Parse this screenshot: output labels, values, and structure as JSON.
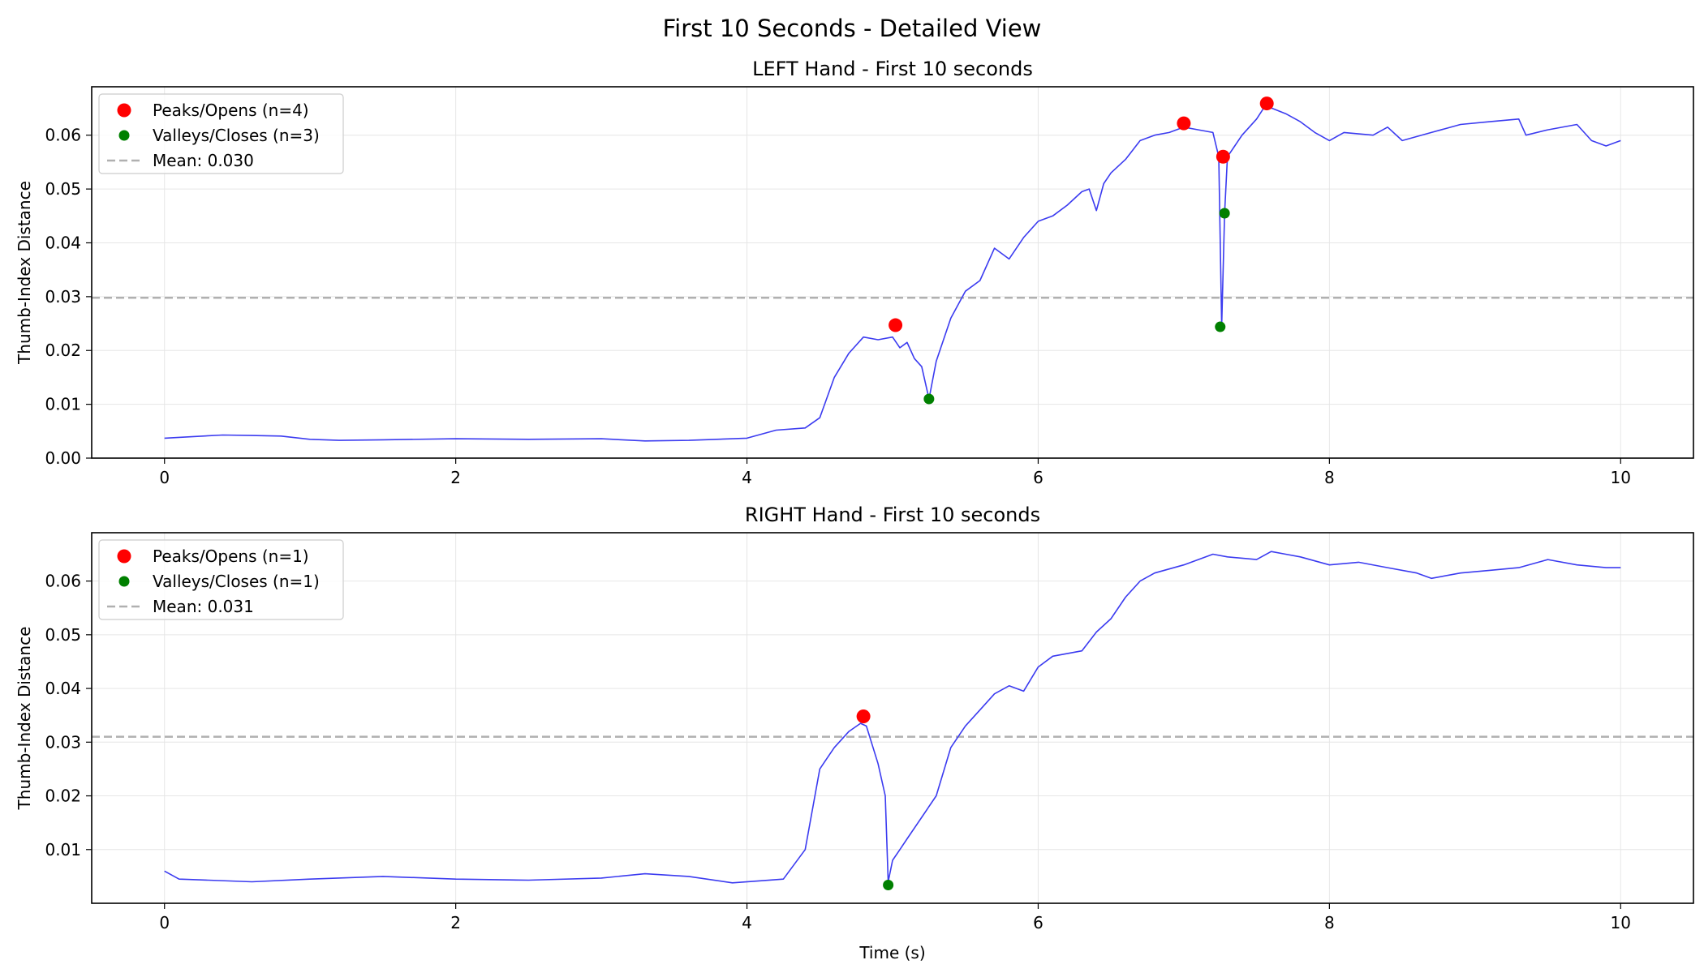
{
  "figure": {
    "title": "First 10 Seconds - Detailed View"
  },
  "chart_data": [
    {
      "type": "line",
      "title": "LEFT Hand - First 10 seconds",
      "xlabel": "",
      "ylabel": "Thumb-Index Distance",
      "xlim": [
        -0.5,
        10.5
      ],
      "ylim": [
        0.0,
        0.069
      ],
      "x_ticks": [
        0,
        2,
        4,
        6,
        8,
        10
      ],
      "y_ticks": [
        0.0,
        0.01,
        0.02,
        0.03,
        0.04,
        0.05,
        0.06
      ],
      "y_tick_decimals": 2,
      "grid": true,
      "legend_position": "top-left",
      "line_color": "#3b3bf0",
      "series": [
        {
          "kind": "line",
          "points": [
            [
              0.0,
              0.0037
            ],
            [
              0.2,
              0.004
            ],
            [
              0.4,
              0.0043
            ],
            [
              0.6,
              0.0042
            ],
            [
              0.8,
              0.0041
            ],
            [
              1.0,
              0.0035
            ],
            [
              1.2,
              0.0033
            ],
            [
              1.5,
              0.0034
            ],
            [
              2.0,
              0.0036
            ],
            [
              2.5,
              0.0035
            ],
            [
              3.0,
              0.0036
            ],
            [
              3.3,
              0.0032
            ],
            [
              3.6,
              0.0033
            ],
            [
              4.0,
              0.0037
            ],
            [
              4.2,
              0.0052
            ],
            [
              4.4,
              0.0056
            ],
            [
              4.5,
              0.0075
            ],
            [
              4.6,
              0.015
            ],
            [
              4.7,
              0.0195
            ],
            [
              4.8,
              0.0225
            ],
            [
              4.9,
              0.022
            ],
            [
              5.0,
              0.0225
            ],
            [
              5.05,
              0.0205
            ],
            [
              5.1,
              0.0215
            ],
            [
              5.15,
              0.0185
            ],
            [
              5.2,
              0.017
            ],
            [
              5.25,
              0.011
            ],
            [
              5.3,
              0.018
            ],
            [
              5.4,
              0.026
            ],
            [
              5.5,
              0.031
            ],
            [
              5.6,
              0.033
            ],
            [
              5.7,
              0.039
            ],
            [
              5.8,
              0.037
            ],
            [
              5.9,
              0.041
            ],
            [
              6.0,
              0.044
            ],
            [
              6.1,
              0.045
            ],
            [
              6.2,
              0.047
            ],
            [
              6.3,
              0.0495
            ],
            [
              6.35,
              0.05
            ],
            [
              6.4,
              0.046
            ],
            [
              6.45,
              0.051
            ],
            [
              6.5,
              0.053
            ],
            [
              6.6,
              0.0555
            ],
            [
              6.7,
              0.059
            ],
            [
              6.8,
              0.06
            ],
            [
              6.9,
              0.0605
            ],
            [
              7.0,
              0.0615
            ],
            [
              7.1,
              0.061
            ],
            [
              7.2,
              0.0605
            ],
            [
              7.24,
              0.056
            ],
            [
              7.26,
              0.0245
            ],
            [
              7.28,
              0.0455
            ],
            [
              7.3,
              0.056
            ],
            [
              7.35,
              0.058
            ],
            [
              7.4,
              0.06
            ],
            [
              7.5,
              0.063
            ],
            [
              7.56,
              0.0655
            ],
            [
              7.7,
              0.064
            ],
            [
              7.8,
              0.0625
            ],
            [
              7.9,
              0.0605
            ],
            [
              8.0,
              0.059
            ],
            [
              8.1,
              0.0605
            ],
            [
              8.3,
              0.06
            ],
            [
              8.4,
              0.0615
            ],
            [
              8.5,
              0.059
            ],
            [
              8.7,
              0.0605
            ],
            [
              8.9,
              0.062
            ],
            [
              9.1,
              0.0625
            ],
            [
              9.3,
              0.063
            ],
            [
              9.35,
              0.06
            ],
            [
              9.5,
              0.061
            ],
            [
              9.7,
              0.062
            ],
            [
              9.8,
              0.059
            ],
            [
              9.9,
              0.058
            ],
            [
              10.0,
              0.059
            ]
          ]
        },
        {
          "kind": "markers",
          "name": "Peaks/Opens (n=4)",
          "color": "#ff0000",
          "points": [
            [
              5.02,
              0.0247
            ],
            [
              7.0,
              0.0622
            ],
            [
              7.27,
              0.056
            ],
            [
              7.57,
              0.0659
            ]
          ]
        },
        {
          "kind": "markers",
          "name": "Valleys/Closes (n=3)",
          "color": "#008000",
          "points": [
            [
              5.25,
              0.011
            ],
            [
              7.25,
              0.0244
            ],
            [
              7.28,
              0.0455
            ]
          ]
        },
        {
          "kind": "hline",
          "name": "Mean: 0.030",
          "value": 0.0298,
          "color": "#b0b0b0"
        }
      ]
    },
    {
      "type": "line",
      "title": "RIGHT Hand - First 10 seconds",
      "xlabel": "Time (s)",
      "ylabel": "Thumb-Index Distance",
      "xlim": [
        -0.5,
        10.5
      ],
      "ylim": [
        0.0,
        0.069
      ],
      "x_ticks": [
        0,
        2,
        4,
        6,
        8,
        10
      ],
      "y_ticks": [
        0.01,
        0.02,
        0.03,
        0.04,
        0.05,
        0.06
      ],
      "y_tick_decimals": 2,
      "grid": true,
      "legend_position": "top-left",
      "line_color": "#3b3bf0",
      "series": [
        {
          "kind": "line",
          "points": [
            [
              0.0,
              0.006
            ],
            [
              0.1,
              0.0045
            ],
            [
              0.3,
              0.0043
            ],
            [
              0.6,
              0.004
            ],
            [
              1.0,
              0.0045
            ],
            [
              1.5,
              0.005
            ],
            [
              2.0,
              0.0045
            ],
            [
              2.5,
              0.0043
            ],
            [
              3.0,
              0.0047
            ],
            [
              3.3,
              0.0055
            ],
            [
              3.6,
              0.005
            ],
            [
              3.9,
              0.0038
            ],
            [
              4.1,
              0.0042
            ],
            [
              4.25,
              0.0045
            ],
            [
              4.4,
              0.01
            ],
            [
              4.5,
              0.025
            ],
            [
              4.6,
              0.029
            ],
            [
              4.7,
              0.032
            ],
            [
              4.78,
              0.0335
            ],
            [
              4.82,
              0.033
            ],
            [
              4.9,
              0.026
            ],
            [
              4.95,
              0.02
            ],
            [
              4.97,
              0.004
            ],
            [
              5.0,
              0.008
            ],
            [
              5.05,
              0.01
            ],
            [
              5.1,
              0.012
            ],
            [
              5.2,
              0.016
            ],
            [
              5.3,
              0.02
            ],
            [
              5.4,
              0.029
            ],
            [
              5.5,
              0.033
            ],
            [
              5.6,
              0.036
            ],
            [
              5.7,
              0.039
            ],
            [
              5.8,
              0.0405
            ],
            [
              5.9,
              0.0395
            ],
            [
              6.0,
              0.044
            ],
            [
              6.1,
              0.046
            ],
            [
              6.3,
              0.047
            ],
            [
              6.4,
              0.0505
            ],
            [
              6.5,
              0.053
            ],
            [
              6.6,
              0.057
            ],
            [
              6.7,
              0.06
            ],
            [
              6.8,
              0.0615
            ],
            [
              7.0,
              0.063
            ],
            [
              7.2,
              0.065
            ],
            [
              7.3,
              0.0645
            ],
            [
              7.5,
              0.064
            ],
            [
              7.6,
              0.0655
            ],
            [
              7.7,
              0.065
            ],
            [
              7.8,
              0.0645
            ],
            [
              8.0,
              0.063
            ],
            [
              8.2,
              0.0635
            ],
            [
              8.4,
              0.0625
            ],
            [
              8.6,
              0.0615
            ],
            [
              8.7,
              0.0605
            ],
            [
              8.9,
              0.0615
            ],
            [
              9.1,
              0.062
            ],
            [
              9.3,
              0.0625
            ],
            [
              9.5,
              0.064
            ],
            [
              9.7,
              0.063
            ],
            [
              9.9,
              0.0625
            ],
            [
              10.0,
              0.0625
            ]
          ]
        },
        {
          "kind": "markers",
          "name": "Peaks/Opens (n=1)",
          "color": "#ff0000",
          "points": [
            [
              4.8,
              0.0348
            ]
          ]
        },
        {
          "kind": "markers",
          "name": "Valleys/Closes (n=1)",
          "color": "#008000",
          "points": [
            [
              4.97,
              0.0034
            ]
          ]
        },
        {
          "kind": "hline",
          "name": "Mean: 0.031",
          "value": 0.031,
          "color": "#b0b0b0"
        }
      ]
    }
  ]
}
